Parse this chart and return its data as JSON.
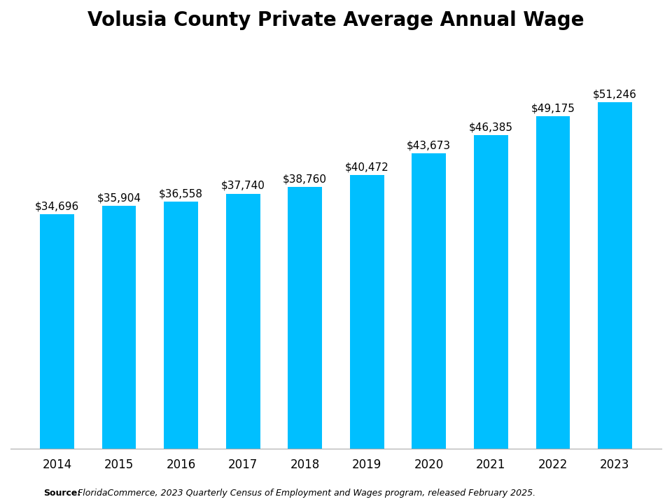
{
  "title": "Volusia County Private Average Annual Wage",
  "years": [
    "2014",
    "2015",
    "2016",
    "2017",
    "2018",
    "2019",
    "2020",
    "2021",
    "2022",
    "2023"
  ],
  "values": [
    34696,
    35904,
    36558,
    37740,
    38760,
    40472,
    43673,
    46385,
    49175,
    51246
  ],
  "labels": [
    "$34,696",
    "$35,904",
    "$36,558",
    "$37,740",
    "$38,760",
    "$40,472",
    "$43,673",
    "$46,385",
    "$49,175",
    "$51,246"
  ],
  "bar_color": "#00BFFF",
  "background_color": "#ffffff",
  "title_fontsize": 20,
  "label_fontsize": 11,
  "tick_fontsize": 12,
  "source_bold": "Source:",
  "source_italic": " FloridaCommerce, 2023 Quarterly Census of Employment and Wages program, released February 2025.",
  "ylim_min": 0,
  "ylim_max": 60000,
  "bar_width": 0.55
}
